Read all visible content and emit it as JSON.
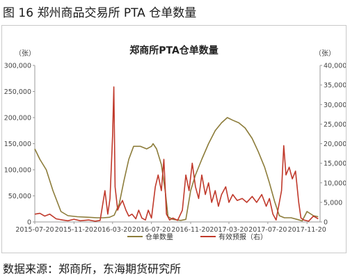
{
  "figure_title": "图 16  郑州商品交易所 PTA 仓单数量",
  "source": "数据来源：郑商所，东海期货研究所",
  "chart_data": {
    "type": "line",
    "title": "郑商所PTA仓单数量",
    "left_unit": "（张）",
    "right_unit": "（张）",
    "x_ticks": [
      "2015-07-20",
      "2015-11-20",
      "2016-03-20",
      "2016-07-20",
      "2016-11-20",
      "2017-03-20",
      "2017-07-20",
      "2017-11-20"
    ],
    "x_range": [
      "2015-07-20",
      "2017-12-31"
    ],
    "ylim_left": [
      0,
      300000
    ],
    "ylim_right": [
      0,
      40000
    ],
    "y_left_ticks": [
      "0",
      "50,000",
      "100,000",
      "150,000",
      "200,000",
      "250,000",
      "300,000"
    ],
    "y_right_ticks": [
      "0",
      "5,000",
      "10,000",
      "15,000",
      "20,000",
      "25,000",
      "30,000",
      "35,000",
      "40,000"
    ],
    "grid": false,
    "legend_position": "bottom",
    "series": [
      {
        "name": "仓单数量",
        "axis": "left",
        "color": "#8c7c3a",
        "points": [
          [
            "2015-07-20",
            140000
          ],
          [
            "2015-08-05",
            120000
          ],
          [
            "2015-08-25",
            100000
          ],
          [
            "2015-09-15",
            60000
          ],
          [
            "2015-10-10",
            20000
          ],
          [
            "2015-11-01",
            12000
          ],
          [
            "2015-12-01",
            10000
          ],
          [
            "2016-01-05",
            9000
          ],
          [
            "2016-02-01",
            8000
          ],
          [
            "2016-02-20",
            8000
          ],
          [
            "2016-03-10",
            9000
          ],
          [
            "2016-03-25",
            13000
          ],
          [
            "2016-04-10",
            35000
          ],
          [
            "2016-04-25",
            80000
          ],
          [
            "2016-05-10",
            120000
          ],
          [
            "2016-05-25",
            145000
          ],
          [
            "2016-06-15",
            145000
          ],
          [
            "2016-07-05",
            140000
          ],
          [
            "2016-07-20",
            145000
          ],
          [
            "2016-07-25",
            150000
          ],
          [
            "2016-08-05",
            140000
          ],
          [
            "2016-08-20",
            110000
          ],
          [
            "2016-09-01",
            60000
          ],
          [
            "2016-09-10",
            10000
          ],
          [
            "2016-09-25",
            5000
          ],
          [
            "2016-10-20",
            3000
          ],
          [
            "2016-11-05",
            5000
          ],
          [
            "2016-11-20",
            60000
          ],
          [
            "2016-12-05",
            90000
          ],
          [
            "2016-12-25",
            120000
          ],
          [
            "2017-01-15",
            150000
          ],
          [
            "2017-02-05",
            175000
          ],
          [
            "2017-02-25",
            190000
          ],
          [
            "2017-03-15",
            200000
          ],
          [
            "2017-04-01",
            195000
          ],
          [
            "2017-04-20",
            190000
          ],
          [
            "2017-05-10",
            180000
          ],
          [
            "2017-06-01",
            160000
          ],
          [
            "2017-06-20",
            135000
          ],
          [
            "2017-07-10",
            105000
          ],
          [
            "2017-07-25",
            75000
          ],
          [
            "2017-08-10",
            40000
          ],
          [
            "2017-08-25",
            12000
          ],
          [
            "2017-09-10",
            8000
          ],
          [
            "2017-10-01",
            8000
          ],
          [
            "2017-10-20",
            5000
          ],
          [
            "2017-11-05",
            2000
          ],
          [
            "2017-11-20",
            20000
          ],
          [
            "2017-12-10",
            12000
          ],
          [
            "2017-12-25",
            10000
          ]
        ]
      },
      {
        "name": "有效预报（右）",
        "axis": "right",
        "color": "#c0392b",
        "points": [
          [
            "2015-07-20",
            2000
          ],
          [
            "2015-08-05",
            2200
          ],
          [
            "2015-08-20",
            1500
          ],
          [
            "2015-09-05",
            2000
          ],
          [
            "2015-09-25",
            800
          ],
          [
            "2015-10-15",
            500
          ],
          [
            "2015-11-01",
            300
          ],
          [
            "2015-11-20",
            700
          ],
          [
            "2015-12-10",
            300
          ],
          [
            "2016-01-05",
            500
          ],
          [
            "2016-01-25",
            200
          ],
          [
            "2016-02-10",
            400
          ],
          [
            "2016-02-25",
            8000
          ],
          [
            "2016-03-05",
            2000
          ],
          [
            "2016-03-12",
            6000
          ],
          [
            "2016-03-20",
            22000
          ],
          [
            "2016-03-24",
            34500
          ],
          [
            "2016-03-28",
            9000
          ],
          [
            "2016-04-05",
            3000
          ],
          [
            "2016-04-10",
            4000
          ],
          [
            "2016-04-20",
            5500
          ],
          [
            "2016-05-01",
            3000
          ],
          [
            "2016-05-10",
            1500
          ],
          [
            "2016-05-20",
            2000
          ],
          [
            "2016-06-01",
            800
          ],
          [
            "2016-06-10",
            3000
          ],
          [
            "2016-06-20",
            1000
          ],
          [
            "2016-07-01",
            500
          ],
          [
            "2016-07-10",
            3000
          ],
          [
            "2016-07-20",
            1000
          ],
          [
            "2016-08-01",
            9000
          ],
          [
            "2016-08-10",
            12000
          ],
          [
            "2016-08-20",
            8000
          ],
          [
            "2016-08-28",
            16000
          ],
          [
            "2016-09-05",
            2000
          ],
          [
            "2016-09-15",
            500
          ],
          [
            "2016-09-25",
            1000
          ],
          [
            "2016-10-10",
            400
          ],
          [
            "2016-10-25",
            3000
          ],
          [
            "2016-11-05",
            12000
          ],
          [
            "2016-11-15",
            8000
          ],
          [
            "2016-11-25",
            15000
          ],
          [
            "2016-12-05",
            9000
          ],
          [
            "2016-12-15",
            6000
          ],
          [
            "2016-12-25",
            12000
          ],
          [
            "2017-01-05",
            7000
          ],
          [
            "2017-01-15",
            10000
          ],
          [
            "2017-01-25",
            5000
          ],
          [
            "2017-02-05",
            8000
          ],
          [
            "2017-02-15",
            4000
          ],
          [
            "2017-02-25",
            7000
          ],
          [
            "2017-03-10",
            9000
          ],
          [
            "2017-03-20",
            5000
          ],
          [
            "2017-04-01",
            7000
          ],
          [
            "2017-04-15",
            5500
          ],
          [
            "2017-05-01",
            6000
          ],
          [
            "2017-05-15",
            5000
          ],
          [
            "2017-06-01",
            6500
          ],
          [
            "2017-06-15",
            5000
          ],
          [
            "2017-07-01",
            7000
          ],
          [
            "2017-07-15",
            4000
          ],
          [
            "2017-07-25",
            6000
          ],
          [
            "2017-08-05",
            2000
          ],
          [
            "2017-08-15",
            500
          ],
          [
            "2017-09-01",
            8000
          ],
          [
            "2017-09-08",
            19500
          ],
          [
            "2017-09-15",
            12000
          ],
          [
            "2017-09-25",
            14000
          ],
          [
            "2017-10-05",
            11000
          ],
          [
            "2017-10-15",
            13000
          ],
          [
            "2017-10-25",
            5000
          ],
          [
            "2017-11-01",
            1000
          ],
          [
            "2017-11-10",
            500
          ],
          [
            "2017-11-25",
            200
          ],
          [
            "2017-12-10",
            1500
          ],
          [
            "2017-12-25",
            800
          ]
        ]
      }
    ]
  }
}
